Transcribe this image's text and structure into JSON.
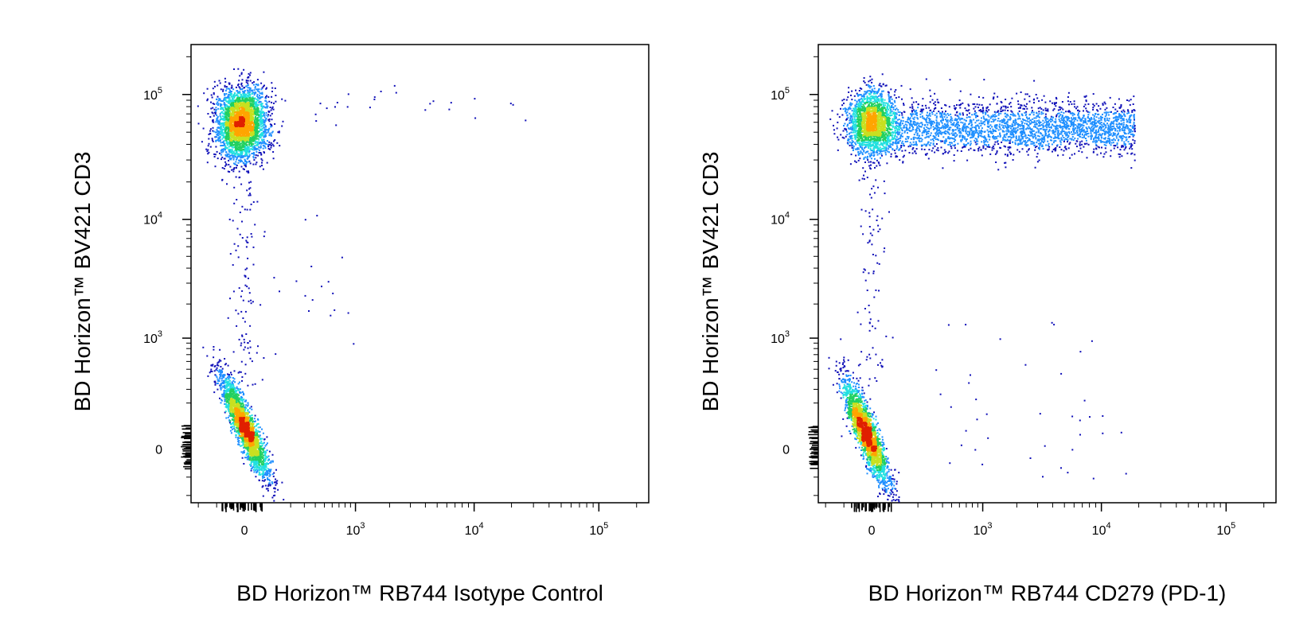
{
  "chart_data": [
    {
      "type": "scatter",
      "subtype": "flow-cytometry-density-dot-plot",
      "xlabel": "BD Horizon™ RB744 Isotype Control",
      "ylabel": "BD Horizon™ BV421 CD3",
      "x_scale": "biexponential",
      "y_scale": "biexponential",
      "x_ticks": [
        {
          "base": "0",
          "exp": ""
        },
        {
          "base": "10",
          "exp": "3"
        },
        {
          "base": "10",
          "exp": "4"
        },
        {
          "base": "10",
          "exp": "5"
        }
      ],
      "y_ticks": [
        {
          "base": "0",
          "exp": ""
        },
        {
          "base": "10",
          "exp": "3"
        },
        {
          "base": "10",
          "exp": "4"
        },
        {
          "base": "10",
          "exp": "5"
        }
      ],
      "xlim": [
        -250,
        250000
      ],
      "ylim": [
        -250,
        250000
      ],
      "grid": false,
      "density_colormap": [
        "#1010b8",
        "#1f8fff",
        "#22e0e0",
        "#22d060",
        "#c8e020",
        "#ffa500",
        "#e02000"
      ],
      "populations": [
        {
          "description": "CD3+ cells",
          "x_center": 0,
          "y_center": 60000,
          "count": 3200
        },
        {
          "description": "CD3- cells",
          "x_center": 0,
          "y_center": 0,
          "count": 2600
        },
        {
          "description": "scattered CD3+ RB744 events",
          "x_range": [
            300,
            50000
          ],
          "y_center": 70000,
          "count": 25
        }
      ]
    },
    {
      "type": "scatter",
      "subtype": "flow-cytometry-density-dot-plot",
      "xlabel": "BD Horizon™ RB744 CD279 (PD-1)",
      "ylabel": "BD Horizon™ BV421 CD3",
      "x_scale": "biexponential",
      "y_scale": "biexponential",
      "x_ticks": [
        {
          "base": "0",
          "exp": ""
        },
        {
          "base": "10",
          "exp": "3"
        },
        {
          "base": "10",
          "exp": "4"
        },
        {
          "base": "10",
          "exp": "5"
        }
      ],
      "y_ticks": [
        {
          "base": "0",
          "exp": ""
        },
        {
          "base": "10",
          "exp": "3"
        },
        {
          "base": "10",
          "exp": "4"
        },
        {
          "base": "10",
          "exp": "5"
        }
      ],
      "xlim": [
        -250,
        250000
      ],
      "ylim": [
        -250,
        250000
      ],
      "grid": false,
      "density_colormap": [
        "#1010b8",
        "#1f8fff",
        "#22e0e0",
        "#22d060",
        "#c8e020",
        "#ffa500",
        "#e02000"
      ],
      "populations": [
        {
          "description": "CD3+ PD-1- cells",
          "x_center": 0,
          "y_center": 60000,
          "count": 2000
        },
        {
          "description": "CD3+ PD-1+ cells",
          "x_range": [
            200,
            10000
          ],
          "y_center": 60000,
          "count": 2600
        },
        {
          "description": "CD3- cells",
          "x_center": 0,
          "y_center": 0,
          "count": 2400
        }
      ]
    }
  ]
}
